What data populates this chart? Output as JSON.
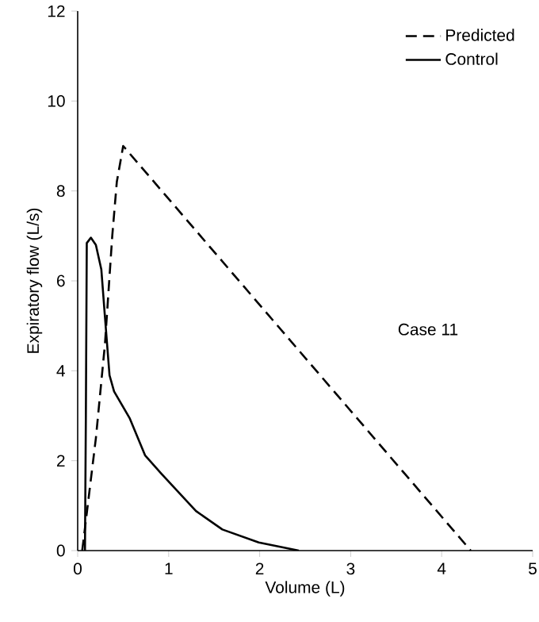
{
  "chart_data": {
    "type": "line",
    "xlabel": "Volume (L)",
    "ylabel": "Expiratory flow (L/s)",
    "xlim": [
      0,
      5
    ],
    "ylim": [
      0,
      12
    ],
    "xticks": [
      0,
      1,
      2,
      3,
      4,
      5
    ],
    "yticks": [
      0,
      2,
      4,
      6,
      8,
      10,
      12
    ],
    "legend": "top right",
    "grid": false,
    "marker": "none",
    "annotations": [
      "Case 11"
    ],
    "series": [
      {
        "name": "Predicted",
        "color": "#000000",
        "line_style": "dashed",
        "x": [
          0.05,
          0.2,
          0.3,
          0.38,
          0.43,
          0.5,
          4.32
        ],
        "values": [
          0,
          2.5,
          4.6,
          7,
          8.2,
          9.0,
          0
        ]
      },
      {
        "name": "Control",
        "color": "#000000",
        "line_style": "solid",
        "x": [
          0.08,
          0.09,
          0.1,
          0.145,
          0.2,
          0.26,
          0.3,
          0.35,
          0.4,
          0.57,
          0.74,
          0.92,
          1.3,
          1.59,
          1.99,
          2.43
        ],
        "values": [
          0,
          3,
          6.84,
          6.96,
          6.8,
          6.25,
          5.19,
          3.9,
          3.54,
          2.95,
          2.12,
          1.71,
          0.88,
          0.47,
          0.18,
          0
        ]
      }
    ]
  }
}
